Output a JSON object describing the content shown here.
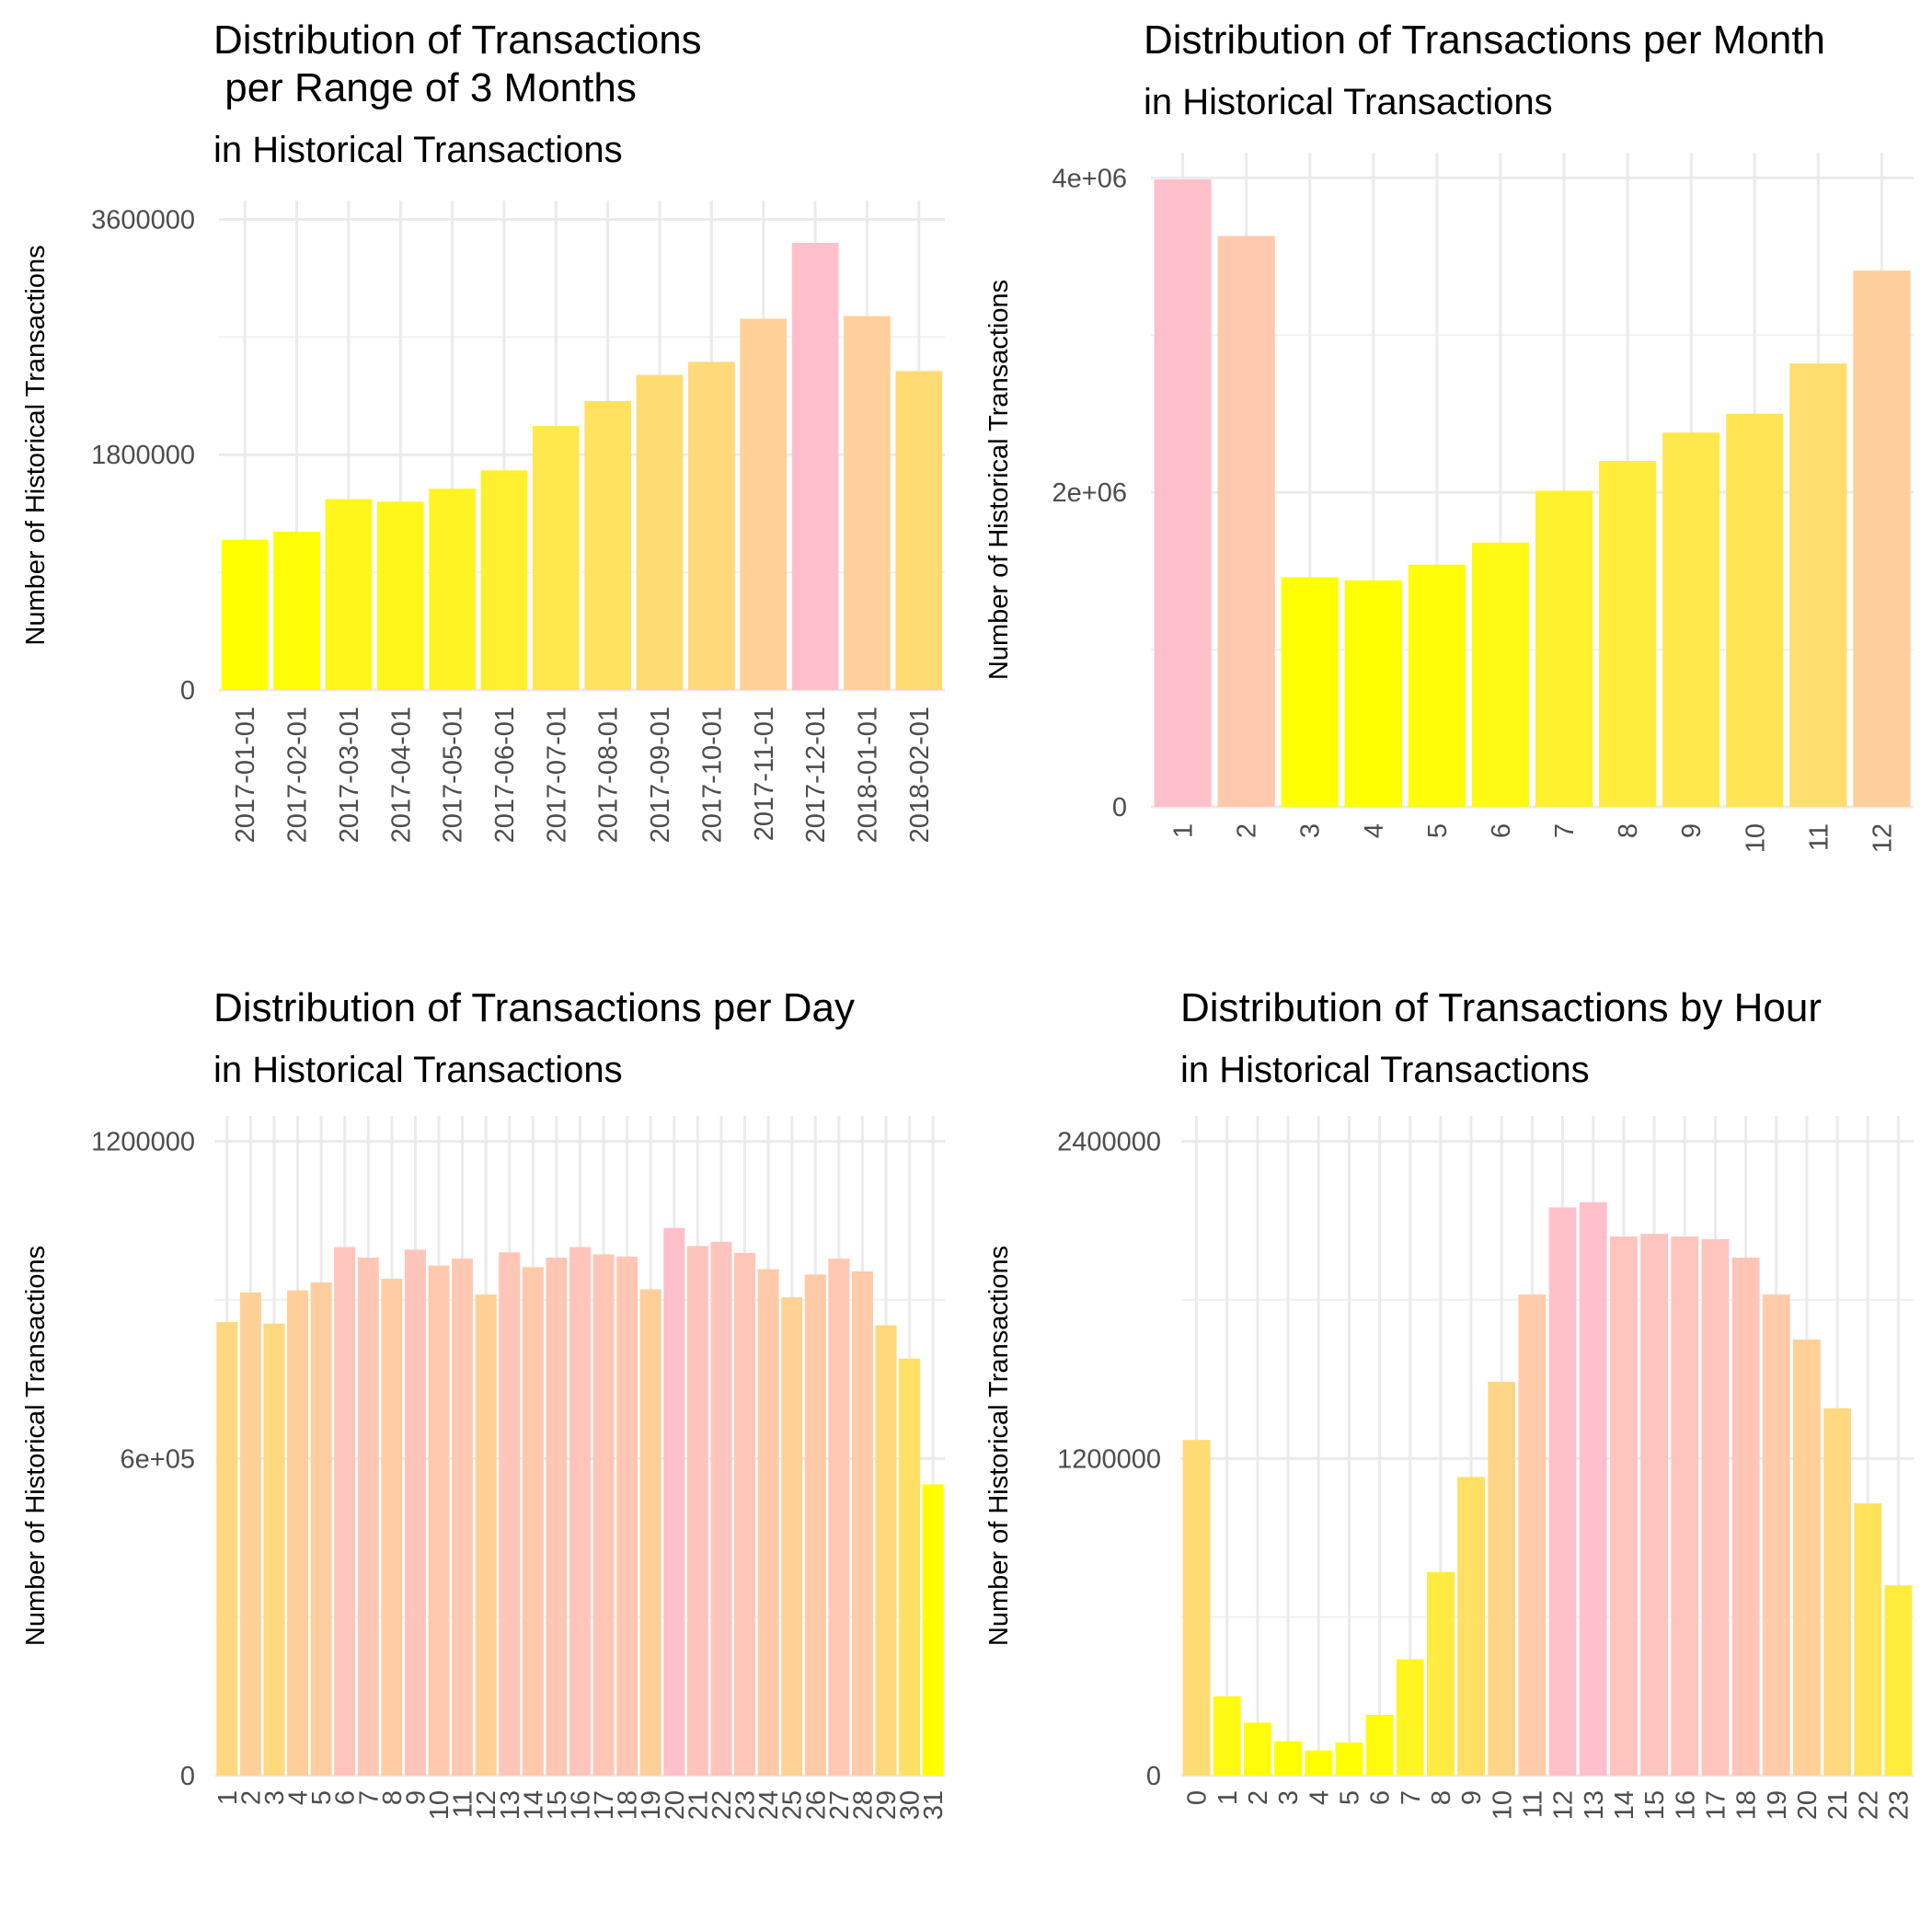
{
  "chart_data": [
    {
      "type": "bar",
      "title": "Distribution of Transactions\n per Range of 3 Months",
      "subtitle": "in Historical Transactions",
      "xlabel": "",
      "ylabel": "Number of Historical Transactions",
      "ylim": [
        0,
        3600000
      ],
      "yticks": [
        0,
        1800000,
        3600000
      ],
      "ytick_labels": [
        "0",
        "1800000",
        "3600000"
      ],
      "x_label_rotation": -90,
      "categories": [
        "2017-01-01",
        "2017-02-01",
        "2017-03-01",
        "2017-04-01",
        "2017-05-01",
        "2017-06-01",
        "2017-07-01",
        "2017-08-01",
        "2017-09-01",
        "2017-10-01",
        "2017-11-01",
        "2017-12-01",
        "2018-01-01",
        "2018-02-01"
      ],
      "values": [
        1150000,
        1210000,
        1460000,
        1440000,
        1540000,
        1680000,
        2020000,
        2210000,
        2410000,
        2510000,
        2840000,
        3420000,
        2860000,
        2440000
      ],
      "color_low": "#FFFF00",
      "color_high": "#FFC0CB",
      "grid": true,
      "legend": "none"
    },
    {
      "type": "bar",
      "title": "Distribution of Transactions per Month",
      "subtitle": "in Historical Transactions",
      "xlabel": "",
      "ylabel": "Number of Historical Transactions",
      "ylim": [
        0,
        4000000
      ],
      "yticks": [
        0,
        2000000,
        4000000
      ],
      "ytick_labels": [
        "0",
        "2e+06",
        "4e+06"
      ],
      "x_label_rotation": -90,
      "categories": [
        "1",
        "2",
        "3",
        "4",
        "5",
        "6",
        "7",
        "8",
        "9",
        "10",
        "11",
        "12"
      ],
      "values": [
        3990000,
        3630000,
        1460000,
        1440000,
        1540000,
        1680000,
        2010000,
        2200000,
        2380000,
        2500000,
        2820000,
        3410000
      ],
      "color_low": "#FFFF00",
      "color_high": "#FFC0CB",
      "grid": true,
      "legend": "none"
    },
    {
      "type": "bar",
      "title": "Distribution of Transactions per Day",
      "subtitle": "in Historical Transactions",
      "xlabel": "",
      "ylabel": "Number of Historical Transactions",
      "ylim": [
        0,
        1200000
      ],
      "yticks": [
        0,
        600000,
        1200000
      ],
      "ytick_labels": [
        "0",
        "6e+05",
        "1200000"
      ],
      "x_label_rotation": -90,
      "categories": [
        "1",
        "2",
        "3",
        "4",
        "5",
        "6",
        "7",
        "8",
        "9",
        "10",
        "11",
        "12",
        "13",
        "14",
        "15",
        "16",
        "17",
        "18",
        "19",
        "20",
        "21",
        "22",
        "23",
        "24",
        "25",
        "26",
        "27",
        "28",
        "29",
        "30",
        "31"
      ],
      "values": [
        858000,
        914000,
        855000,
        918000,
        933000,
        1000000,
        980000,
        940000,
        995000,
        965000,
        978000,
        910000,
        990000,
        962000,
        980000,
        1000000,
        986000,
        982000,
        920000,
        1036000,
        1002000,
        1010000,
        989000,
        958000,
        905000,
        948000,
        978000,
        954000,
        852000,
        789000,
        551000
      ],
      "color_low": "#FFFF00",
      "color_high": "#FFC0CB",
      "grid": true,
      "legend": "none"
    },
    {
      "type": "bar",
      "title": "Distribution of Transactions by Hour",
      "subtitle": "in Historical Transactions",
      "xlabel": "",
      "ylabel": "Number of Historical Transactions",
      "ylim": [
        0,
        2400000
      ],
      "yticks": [
        0,
        1200000,
        2400000
      ],
      "ytick_labels": [
        "0",
        "1200000",
        "2400000"
      ],
      "x_label_rotation": -90,
      "categories": [
        "0",
        "1",
        "2",
        "3",
        "4",
        "5",
        "6",
        "7",
        "8",
        "9",
        "10",
        "11",
        "12",
        "13",
        "14",
        "15",
        "16",
        "17",
        "18",
        "19",
        "20",
        "21",
        "22",
        "23"
      ],
      "values": [
        1270000,
        300000,
        200000,
        130000,
        95000,
        125000,
        230000,
        440000,
        770000,
        1130000,
        1490000,
        1820000,
        2150000,
        2170000,
        2040000,
        2050000,
        2040000,
        2030000,
        1960000,
        1820000,
        1650000,
        1390000,
        1030000,
        720000
      ],
      "color_low": "#FFFF00",
      "color_high": "#FFC0CB",
      "grid": true,
      "legend": "none"
    }
  ]
}
